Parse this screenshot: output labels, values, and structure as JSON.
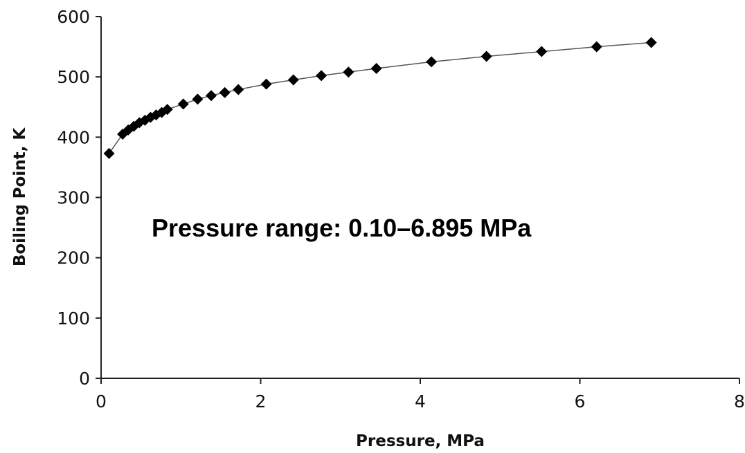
{
  "chart_data": {
    "type": "line",
    "xlabel": "Pressure, MPa",
    "ylabel": "Boiling Point, K",
    "xlim": [
      0,
      8
    ],
    "ylim": [
      0,
      600
    ],
    "xticks": [
      0,
      2,
      4,
      6,
      8
    ],
    "yticks": [
      0,
      100,
      200,
      300,
      400,
      500,
      600
    ],
    "grid": false,
    "legend": "none",
    "annotation": "Pressure range: 0.10–6.895 MPa",
    "series": [
      {
        "marker": "diamond",
        "color": "#000000",
        "x": [
          0.1,
          0.27,
          0.34,
          0.41,
          0.48,
          0.55,
          0.62,
          0.69,
          0.76,
          0.83,
          1.03,
          1.21,
          1.38,
          1.55,
          1.72,
          2.07,
          2.41,
          2.76,
          3.1,
          3.45,
          4.14,
          4.83,
          5.52,
          6.21,
          6.895
        ],
        "y": [
          373,
          405,
          412,
          418,
          424,
          428,
          433,
          437,
          441,
          446,
          455,
          463,
          469,
          474,
          479,
          488,
          495,
          502,
          508,
          514,
          525,
          534,
          542,
          550,
          557
        ]
      }
    ]
  }
}
